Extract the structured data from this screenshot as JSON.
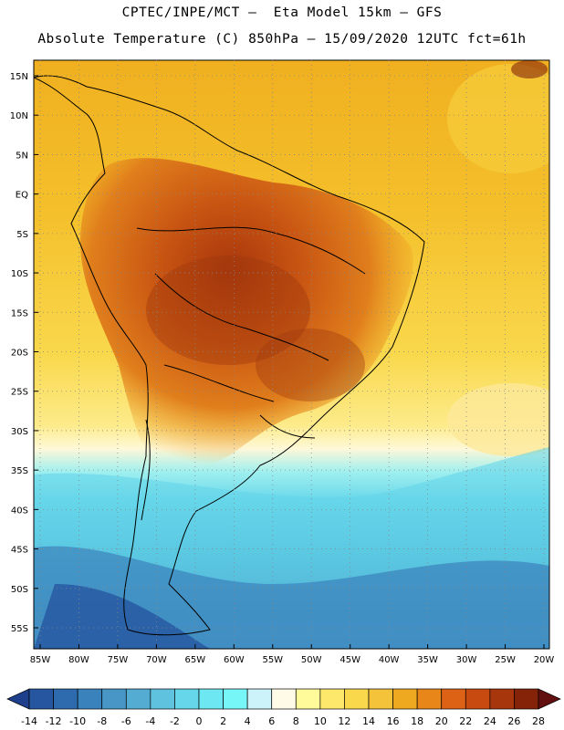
{
  "title_line1": "CPTEC/INPE/MCT –  Eta Model 15km – GFS",
  "title_line2": "Absolute Temperature (C) 850hPa – 15/09/2020 12UTC fct=61h",
  "lat_labels": [
    "15N",
    "10N",
    "5N",
    "EQ",
    "5S",
    "10S",
    "15S",
    "20S",
    "25S",
    "30S",
    "35S",
    "40S",
    "45S",
    "50S",
    "55S"
  ],
  "lat_values": [
    15,
    10,
    5,
    0,
    -5,
    -10,
    -15,
    -20,
    -25,
    -30,
    -35,
    -40,
    -45,
    -50,
    -55
  ],
  "lon_labels": [
    "85W",
    "80W",
    "75W",
    "70W",
    "65W",
    "60W",
    "55W",
    "50W",
    "45W",
    "40W",
    "35W",
    "30W",
    "25W",
    "20W"
  ],
  "lon_values": [
    -85,
    -80,
    -75,
    -70,
    -65,
    -60,
    -55,
    -50,
    -45,
    -40,
    -35,
    -30,
    -25,
    -20
  ],
  "colorbar": {
    "labels": [
      "-14",
      "-12",
      "-10",
      "-8",
      "-6",
      "-4",
      "-2",
      "0",
      "2",
      "4",
      "6",
      "8",
      "10",
      "12",
      "14",
      "16",
      "18",
      "20",
      "22",
      "24",
      "26",
      "28"
    ],
    "colors": [
      "#1e3f8c",
      "#2656a0",
      "#2e6aae",
      "#3a82bc",
      "#4796c6",
      "#55acd2",
      "#5fc2de",
      "#66d6ea",
      "#6de8f2",
      "#77f6f8",
      "#cdf3fa",
      "#fffbe6",
      "#fffa9a",
      "#fde86c",
      "#f9d84c",
      "#f4c33a",
      "#efa920",
      "#e8861a",
      "#dd6216",
      "#c84a10",
      "#a8360c",
      "#852308",
      "#620f10"
    ]
  }
}
